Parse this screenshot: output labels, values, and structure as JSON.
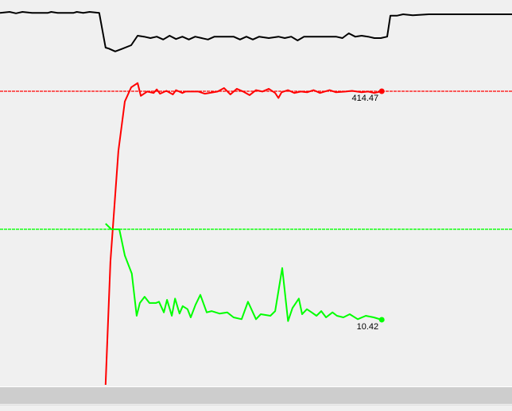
{
  "chart_data": {
    "type": "line",
    "grid": false,
    "legend": "none",
    "xlim": [
      0,
      160
    ],
    "series": [
      {
        "color": "#000000",
        "ylim": [
          0,
          125
        ],
        "points": [
          [
            0,
            98
          ],
          [
            3,
            100
          ],
          [
            5,
            97
          ],
          [
            7,
            100
          ],
          [
            10,
            98
          ],
          [
            15,
            98
          ],
          [
            16,
            100
          ],
          [
            18,
            98
          ],
          [
            23,
            98
          ],
          [
            24,
            100
          ],
          [
            26,
            98
          ],
          [
            28,
            100
          ],
          [
            31,
            98
          ],
          [
            33,
            25
          ],
          [
            34,
            23
          ],
          [
            36,
            17
          ],
          [
            38,
            22
          ],
          [
            41,
            30
          ],
          [
            43,
            50
          ],
          [
            45,
            48
          ],
          [
            47,
            45
          ],
          [
            49,
            48
          ],
          [
            51,
            42
          ],
          [
            53,
            50
          ],
          [
            55,
            43
          ],
          [
            57,
            48
          ],
          [
            59,
            42
          ],
          [
            61,
            48
          ],
          [
            63,
            45
          ],
          [
            65,
            42
          ],
          [
            67,
            48
          ],
          [
            69,
            48
          ],
          [
            73,
            48
          ],
          [
            75,
            42
          ],
          [
            77,
            48
          ],
          [
            79,
            42
          ],
          [
            81,
            48
          ],
          [
            84,
            45
          ],
          [
            87,
            48
          ],
          [
            89,
            45
          ],
          [
            91,
            48
          ],
          [
            93,
            40
          ],
          [
            95,
            48
          ],
          [
            97,
            48
          ],
          [
            105,
            48
          ],
          [
            107,
            45
          ],
          [
            109,
            55
          ],
          [
            111,
            48
          ],
          [
            113,
            50
          ],
          [
            115,
            48
          ],
          [
            117,
            45
          ],
          [
            119,
            45
          ],
          [
            121,
            48
          ],
          [
            122,
            92
          ],
          [
            124,
            92
          ],
          [
            126,
            95
          ],
          [
            129,
            93
          ],
          [
            134,
            95
          ],
          [
            160,
            95
          ]
        ]
      },
      {
        "color": "#ff0000",
        "ylim": [
          0,
          543.3
        ],
        "reference": 414.47,
        "last_label": "414.47",
        "points": [
          [
            33,
            0
          ],
          [
            34.5,
            174
          ],
          [
            37,
            330
          ],
          [
            39,
            400
          ],
          [
            41,
            420
          ],
          [
            43,
            426
          ],
          [
            44,
            408
          ],
          [
            46,
            414
          ],
          [
            48,
            412
          ],
          [
            49,
            417
          ],
          [
            50,
            411
          ],
          [
            52,
            415
          ],
          [
            54,
            410
          ],
          [
            55,
            416
          ],
          [
            57,
            412
          ],
          [
            58,
            414
          ],
          [
            62,
            414
          ],
          [
            64,
            411
          ],
          [
            68,
            414
          ],
          [
            70,
            419
          ],
          [
            72,
            410
          ],
          [
            74,
            418
          ],
          [
            76,
            414
          ],
          [
            78,
            409
          ],
          [
            80,
            416
          ],
          [
            82,
            414
          ],
          [
            84,
            418
          ],
          [
            86,
            412
          ],
          [
            87,
            405
          ],
          [
            88,
            413
          ],
          [
            90,
            416
          ],
          [
            92,
            412
          ],
          [
            94,
            414
          ],
          [
            96,
            413
          ],
          [
            98,
            416
          ],
          [
            100,
            412
          ],
          [
            103,
            416
          ],
          [
            105,
            413
          ],
          [
            108,
            414
          ],
          [
            110,
            415
          ],
          [
            113,
            413
          ],
          [
            115,
            414
          ],
          [
            117,
            412
          ],
          [
            119.3,
            414.47
          ]
        ]
      },
      {
        "color": "#00ff00",
        "ylim": [
          0,
          61.6
        ],
        "reference": 24.9,
        "last_label": "10.42",
        "points": [
          [
            33,
            25.8
          ],
          [
            34.8,
            24.9
          ],
          [
            37.3,
            24.9
          ],
          [
            39,
            20.7
          ],
          [
            41.2,
            17.8
          ],
          [
            42.7,
            11.05
          ],
          [
            43.7,
            13.1
          ],
          [
            45.2,
            14.1
          ],
          [
            46.7,
            13.1
          ],
          [
            48.7,
            13.1
          ],
          [
            49.7,
            13.3
          ],
          [
            51.2,
            11.6
          ],
          [
            52.2,
            13.6
          ],
          [
            53.7,
            11.05
          ],
          [
            54.7,
            13.8
          ],
          [
            56.1,
            11.4
          ],
          [
            57.1,
            12.6
          ],
          [
            58.6,
            12.1
          ],
          [
            59.6,
            10.8
          ],
          [
            61.1,
            12.8
          ],
          [
            62.6,
            14.4
          ],
          [
            64.6,
            11.6
          ],
          [
            66.1,
            11.8
          ],
          [
            68.6,
            11.4
          ],
          [
            71,
            11.6
          ],
          [
            73,
            10.8
          ],
          [
            75.5,
            10.5
          ],
          [
            77.5,
            13.3
          ],
          [
            80,
            10.5
          ],
          [
            81.5,
            11.3
          ],
          [
            84.5,
            11.05
          ],
          [
            86,
            11.8
          ],
          [
            88.2,
            18.7
          ],
          [
            90,
            10.2
          ],
          [
            91.4,
            12.3
          ],
          [
            93.4,
            13.8
          ],
          [
            94.4,
            11.3
          ],
          [
            95.9,
            12.1
          ],
          [
            97.4,
            11.6
          ],
          [
            98.9,
            11.05
          ],
          [
            100.4,
            11.8
          ],
          [
            101.9,
            10.8
          ],
          [
            103.9,
            11.6
          ],
          [
            105.3,
            11.05
          ],
          [
            107.3,
            10.8
          ],
          [
            109.3,
            11.3
          ],
          [
            111.8,
            10.5
          ],
          [
            114.3,
            11.05
          ],
          [
            116.8,
            10.8
          ],
          [
            119.3,
            10.42
          ]
        ]
      }
    ]
  }
}
